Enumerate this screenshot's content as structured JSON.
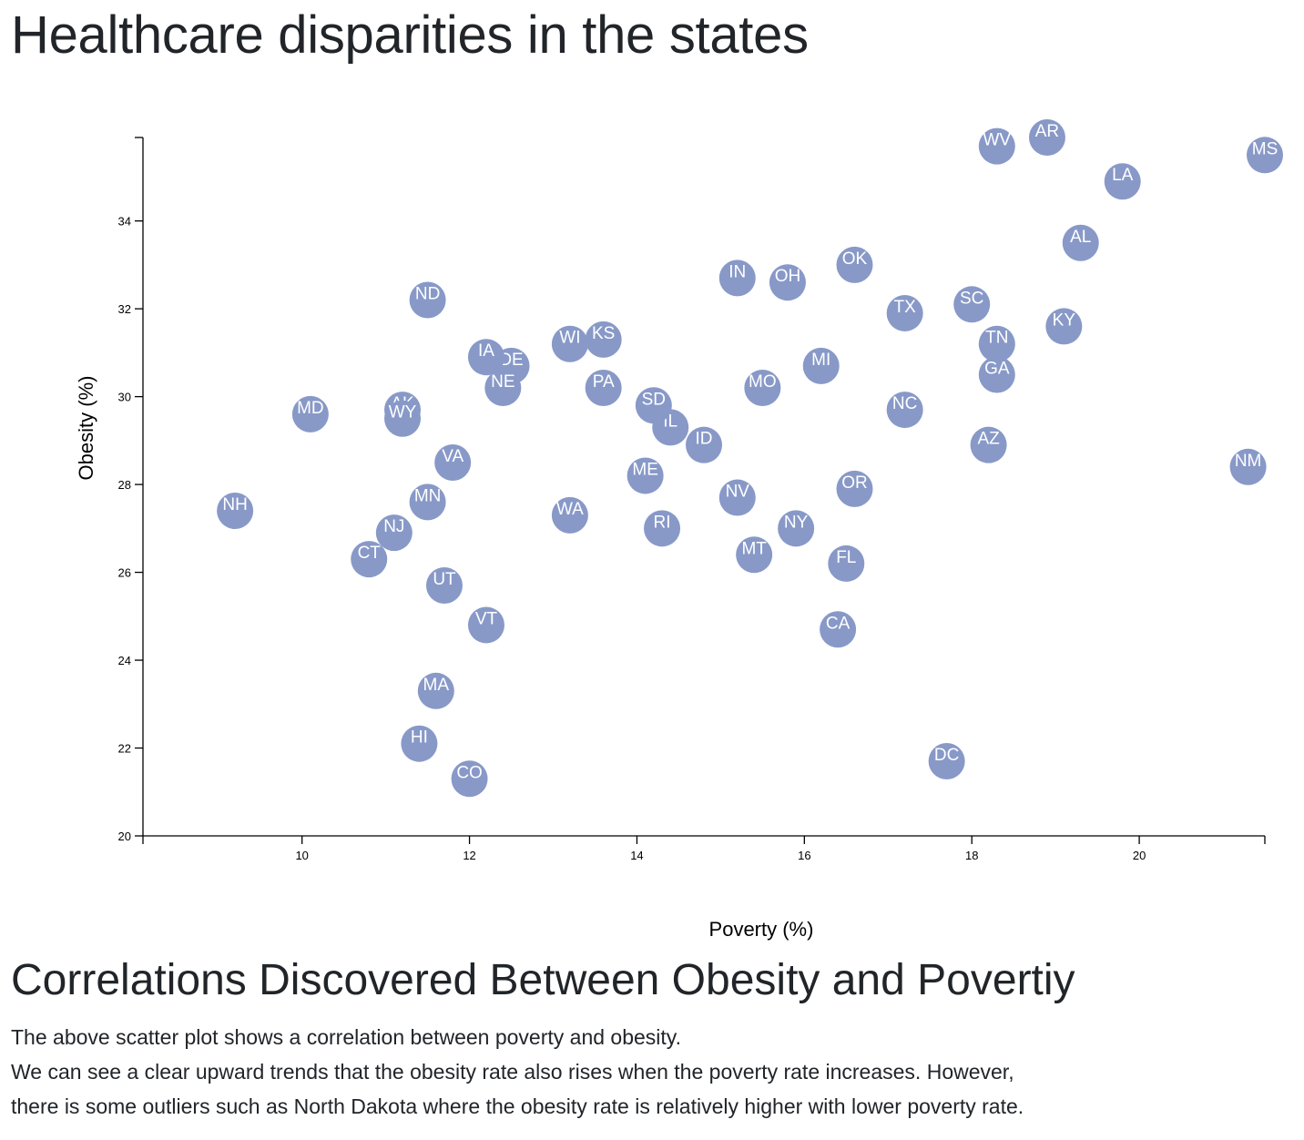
{
  "page": {
    "title": "Healthcare disparities in the states",
    "section_heading": "Correlations Discovered Between Obesity and Povertiy",
    "paragraph_1": "The above scatter plot shows a correlation between poverty and obesity.",
    "paragraph_2": "We can see a clear upward trends that the obesity rate also rises when the poverty rate increases. However,",
    "paragraph_3": "there is some outliers such as North Dakota where the obesity rate is relatively higher with lower poverty rate."
  },
  "chart_data": {
    "type": "scatter",
    "xlabel": "Poverty (%)",
    "ylabel": "Obesity (%)",
    "xlim": [
      8.1,
      21.5
    ],
    "ylim": [
      20,
      35.9
    ],
    "x_ticks": [
      10,
      12,
      14,
      16,
      18,
      20
    ],
    "y_ticks": [
      20,
      22,
      24,
      26,
      28,
      30,
      32,
      34
    ],
    "marker_color": "#8899c8",
    "label_color": "#ffffff",
    "grid": false,
    "points": [
      {
        "label": "AL",
        "x": 19.3,
        "y": 33.5
      },
      {
        "label": "AK",
        "x": 11.2,
        "y": 29.7
      },
      {
        "label": "AZ",
        "x": 18.2,
        "y": 28.9
      },
      {
        "label": "AR",
        "x": 18.9,
        "y": 35.9
      },
      {
        "label": "CA",
        "x": 16.4,
        "y": 24.7
      },
      {
        "label": "CO",
        "x": 12.0,
        "y": 21.3
      },
      {
        "label": "CT",
        "x": 10.8,
        "y": 26.3
      },
      {
        "label": "DE",
        "x": 12.5,
        "y": 30.7
      },
      {
        "label": "DC",
        "x": 17.7,
        "y": 21.7
      },
      {
        "label": "FL",
        "x": 16.5,
        "y": 26.2
      },
      {
        "label": "GA",
        "x": 18.3,
        "y": 30.5
      },
      {
        "label": "HI",
        "x": 11.4,
        "y": 22.1
      },
      {
        "label": "ID",
        "x": 14.8,
        "y": 28.9
      },
      {
        "label": "IL",
        "x": 14.4,
        "y": 29.3
      },
      {
        "label": "IN",
        "x": 15.2,
        "y": 32.7
      },
      {
        "label": "IA",
        "x": 12.2,
        "y": 30.9
      },
      {
        "label": "KS",
        "x": 13.6,
        "y": 31.3
      },
      {
        "label": "KY",
        "x": 19.1,
        "y": 31.6
      },
      {
        "label": "LA",
        "x": 19.8,
        "y": 34.9
      },
      {
        "label": "ME",
        "x": 14.1,
        "y": 28.2
      },
      {
        "label": "MD",
        "x": 10.1,
        "y": 29.6
      },
      {
        "label": "MA",
        "x": 11.6,
        "y": 23.3
      },
      {
        "label": "MI",
        "x": 16.2,
        "y": 30.7
      },
      {
        "label": "MN",
        "x": 11.5,
        "y": 27.6
      },
      {
        "label": "MS",
        "x": 21.5,
        "y": 35.5
      },
      {
        "label": "MO",
        "x": 15.5,
        "y": 30.2
      },
      {
        "label": "MT",
        "x": 15.4,
        "y": 26.4
      },
      {
        "label": "NE",
        "x": 12.4,
        "y": 30.2
      },
      {
        "label": "NV",
        "x": 15.2,
        "y": 27.7
      },
      {
        "label": "NH",
        "x": 9.2,
        "y": 27.4
      },
      {
        "label": "NJ",
        "x": 11.1,
        "y": 26.9
      },
      {
        "label": "NM",
        "x": 21.3,
        "y": 28.4
      },
      {
        "label": "NY",
        "x": 15.9,
        "y": 27.0
      },
      {
        "label": "NC",
        "x": 17.2,
        "y": 29.7
      },
      {
        "label": "ND",
        "x": 11.5,
        "y": 32.2
      },
      {
        "label": "OH",
        "x": 15.8,
        "y": 32.6
      },
      {
        "label": "OK",
        "x": 16.6,
        "y": 33.0
      },
      {
        "label": "OR",
        "x": 16.6,
        "y": 27.9
      },
      {
        "label": "PA",
        "x": 13.6,
        "y": 30.2
      },
      {
        "label": "RI",
        "x": 14.3,
        "y": 27.0
      },
      {
        "label": "SC",
        "x": 18.0,
        "y": 32.1
      },
      {
        "label": "SD",
        "x": 14.2,
        "y": 29.8
      },
      {
        "label": "TN",
        "x": 18.3,
        "y": 31.2
      },
      {
        "label": "TX",
        "x": 17.2,
        "y": 31.9
      },
      {
        "label": "UT",
        "x": 11.7,
        "y": 25.7
      },
      {
        "label": "VT",
        "x": 12.2,
        "y": 24.8
      },
      {
        "label": "VA",
        "x": 11.8,
        "y": 28.5
      },
      {
        "label": "WA",
        "x": 13.2,
        "y": 27.3
      },
      {
        "label": "WV",
        "x": 18.3,
        "y": 35.7
      },
      {
        "label": "WI",
        "x": 13.2,
        "y": 31.2
      },
      {
        "label": "WY",
        "x": 11.2,
        "y": 29.5
      }
    ]
  }
}
